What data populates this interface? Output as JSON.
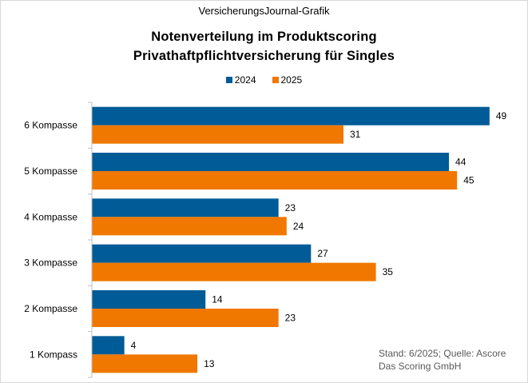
{
  "source_label": "VersicherungsJournal-Grafik",
  "title_line1": "Notenverteilung im Produktscoring",
  "title_line2": "Privathaftpflichtversicherung für Singles",
  "footnote_line1": "Stand: 6/2025; Quelle: Ascore",
  "footnote_line2": "Das Scoring GmbH",
  "colors": {
    "2024": "#005b96",
    "2025": "#f07800",
    "axis": "#bfbfbf"
  },
  "chart_data": {
    "type": "bar",
    "orientation": "horizontal",
    "title": "Notenverteilung im Produktscoring Privathaftpflichtversicherung für Singles",
    "categories": [
      "6 Kompasse",
      "5 Kompasse",
      "4 Kompasse",
      "3 Kompasse",
      "2 Kompasse",
      "1 Kompass"
    ],
    "series": [
      {
        "name": "2024",
        "values": [
          49,
          44,
          23,
          27,
          14,
          4
        ]
      },
      {
        "name": "2025",
        "values": [
          31,
          45,
          24,
          35,
          23,
          13
        ]
      }
    ],
    "xlim": [
      0,
      50
    ],
    "grid": false,
    "legend": "top-center",
    "data_labels": true
  }
}
